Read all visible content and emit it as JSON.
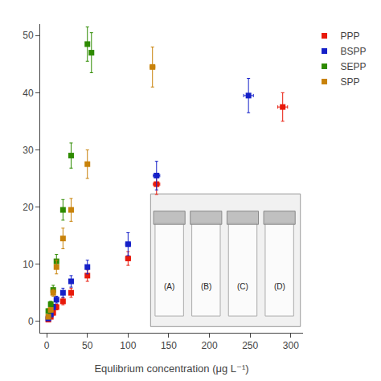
{
  "chart_data": {
    "type": "scatter",
    "xlabel": "Equlibrium concentration (μg L⁻¹)",
    "xlim": [
      -8,
      315
    ],
    "ylim": [
      -2,
      52
    ],
    "xticks": [
      0,
      50,
      100,
      150,
      200,
      250,
      300
    ],
    "yticks": [
      0,
      10,
      20,
      30,
      40,
      50
    ],
    "grid": false,
    "legend": "upper right",
    "marker": "square",
    "series": [
      {
        "name": "PPP",
        "color": "#e8190a",
        "x": [
          2,
          5,
          8,
          12,
          20,
          30,
          50,
          100,
          135,
          290
        ],
        "values": [
          0.3,
          0.8,
          1.5,
          2.5,
          3.5,
          5.0,
          8.0,
          11.0,
          24.0,
          37.5
        ],
        "xerr": [
          0.5,
          0.5,
          0.8,
          0.8,
          1.0,
          1.2,
          2.0,
          3.0,
          4.0,
          6.0
        ],
        "yerr": [
          0.3,
          0.3,
          0.4,
          0.5,
          0.6,
          0.8,
          1.0,
          1.2,
          1.8,
          2.5
        ]
      },
      {
        "name": "BSPP",
        "color": "#1520c8",
        "x": [
          2,
          5,
          8,
          12,
          20,
          30,
          50,
          100,
          135,
          248
        ],
        "values": [
          0.5,
          1.2,
          2.5,
          3.8,
          5.0,
          7.0,
          9.5,
          13.5,
          25.5,
          39.5
        ],
        "xerr": [
          0.5,
          0.5,
          0.8,
          0.8,
          1.0,
          1.2,
          2.0,
          3.0,
          4.0,
          6.0
        ],
        "yerr": [
          0.3,
          0.4,
          0.5,
          0.6,
          0.8,
          1.0,
          1.2,
          2.0,
          2.5,
          3.0
        ]
      },
      {
        "name": "SEPP",
        "color": "#2e8b00",
        "x": [
          2,
          5,
          8,
          12,
          20,
          30,
          50,
          55
        ],
        "values": [
          1.8,
          3.0,
          5.5,
          10.5,
          19.5,
          29.0,
          48.5,
          47.0
        ],
        "xerr": [
          0.3,
          0.4,
          0.5,
          0.6,
          0.8,
          1.0,
          1.2,
          1.5
        ],
        "yerr": [
          0.4,
          0.5,
          0.8,
          1.2,
          1.8,
          2.2,
          3.0,
          3.5
        ]
      },
      {
        "name": "SPP",
        "color": "#c8820a",
        "x": [
          2,
          5,
          8,
          12,
          20,
          30,
          50,
          130
        ],
        "values": [
          0.8,
          2.0,
          5.0,
          9.5,
          14.5,
          19.5,
          27.5,
          44.5
        ],
        "xerr": [
          0.3,
          0.4,
          0.5,
          0.6,
          0.8,
          1.0,
          1.5,
          3.0
        ],
        "yerr": [
          0.3,
          0.4,
          0.6,
          1.2,
          1.8,
          2.0,
          2.5,
          3.5
        ]
      }
    ],
    "annotations": [
      "(A)",
      "(B)",
      "(C)",
      "(D)"
    ]
  }
}
